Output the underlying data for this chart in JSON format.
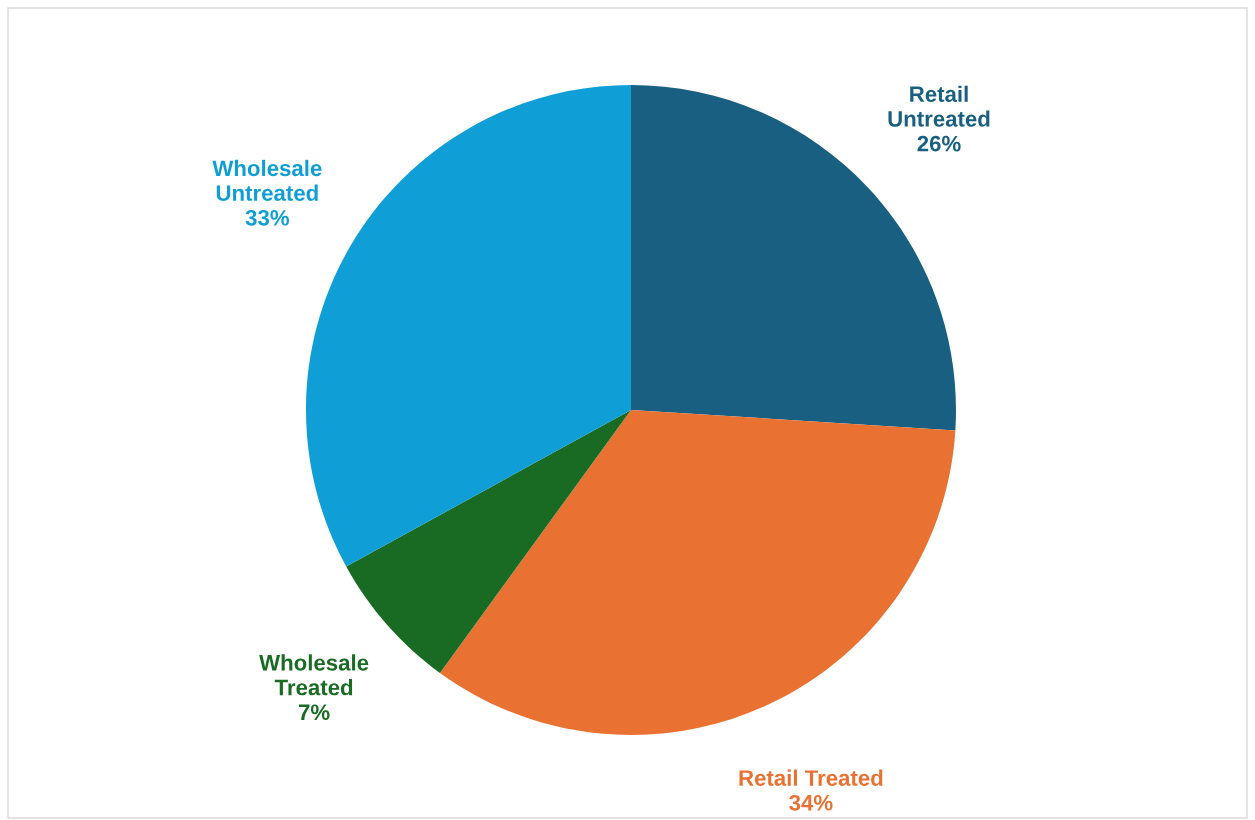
{
  "chart_data": {
    "type": "pie",
    "categories": [
      "Retail Untreated",
      "Retail Treated",
      "Wholesale Treated",
      "Wholesale Untreated"
    ],
    "values": [
      26,
      34,
      7,
      33
    ],
    "value_labels": [
      "26%",
      "34%",
      "7%",
      "33%"
    ],
    "colors": [
      "#185f82",
      "#e97132",
      "#196b24",
      "#0f9ed5"
    ]
  }
}
